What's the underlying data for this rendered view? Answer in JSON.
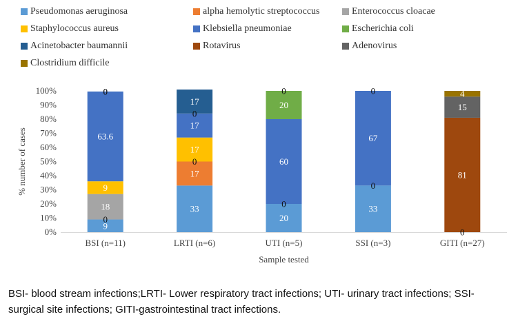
{
  "chart_data": {
    "type": "bar",
    "stacked": true,
    "title": "",
    "xlabel": "Sample tested",
    "ylabel": "% number of cases",
    "ylim": [
      0,
      100
    ],
    "ytick_step": 10,
    "ytick_suffix": "%",
    "grid": false,
    "legend_position": "top",
    "categories": [
      "BSI (n=11)",
      "LRTI (n=6)",
      "UTI (n=5)",
      "SSI (n=3)",
      "GITI (n=27)"
    ],
    "series": [
      {
        "name": "Pseudomonas aeruginosa",
        "color": "#5b9bd5",
        "label_color": "#ffffff",
        "values": [
          9,
          33,
          20,
          33,
          0
        ]
      },
      {
        "name": "alpha hemolytic streptococcus",
        "color": "#ed7d31",
        "label_color": "#ffffff",
        "values": [
          0,
          17,
          0,
          0,
          0
        ]
      },
      {
        "name": "Enterococcus cloacae",
        "color": "#a5a5a5",
        "label_color": "#ffffff",
        "values": [
          18,
          0,
          0,
          0,
          0
        ]
      },
      {
        "name": "Staphylococcus aureus",
        "color": "#ffc000",
        "label_color": "#ffffff",
        "values": [
          9,
          17,
          0,
          0,
          0
        ]
      },
      {
        "name": "Klebsiella pneumoniae",
        "color": "#4472c4",
        "label_color": "#ffffff",
        "values": [
          63.6,
          17,
          60,
          67,
          0
        ]
      },
      {
        "name": "Escherichia coli",
        "color": "#70ad47",
        "label_color": "#ffffff",
        "values": [
          0,
          0,
          20,
          0,
          0
        ]
      },
      {
        "name": "Acinetobacter baumannii",
        "color": "#255e91",
        "label_color": "#ffffff",
        "values": [
          0,
          17,
          0,
          0,
          0
        ]
      },
      {
        "name": "Rotavirus",
        "color": "#9e480e",
        "label_color": "#ffffff",
        "values": [
          0,
          0,
          0,
          0,
          81
        ]
      },
      {
        "name": "Adenovirus",
        "color": "#636363",
        "label_color": "#ffffff",
        "values": [
          0,
          0,
          0,
          0,
          15
        ]
      },
      {
        "name": "Clostridium difficile",
        "color": "#997300",
        "label_color": "#ffffff",
        "values": [
          0,
          0,
          0,
          0,
          4
        ]
      }
    ]
  },
  "caption": "BSI- blood stream infections;LRTI- Lower respiratory tract infections; UTI- urinary tract infections; SSI- surgical site infections; GITI-gastrointestinal tract infections."
}
